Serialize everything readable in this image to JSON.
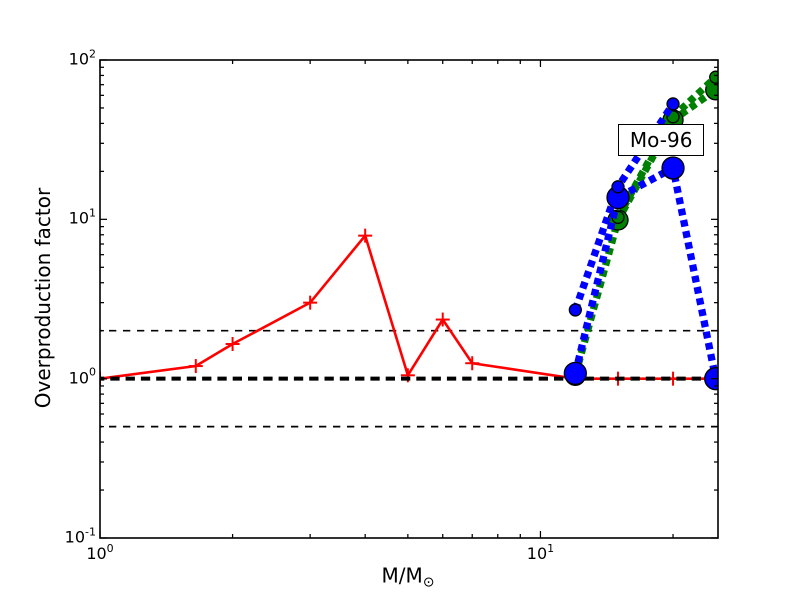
{
  "figure": {
    "background": "#ffffff",
    "axis_color": "#000000"
  },
  "chart_data": {
    "type": "line",
    "title": "",
    "x_scale": "log",
    "y_scale": "log",
    "xlim": [
      1,
      25.3
    ],
    "ylim": [
      0.1,
      100
    ],
    "xlabel_main": "M/M",
    "xlabel_sub": "⊙",
    "ylabel": "Overproduction factor",
    "grid": false,
    "legend": "none",
    "x_tick_labels": [
      {
        "value": 1,
        "base": "10",
        "exp": "0"
      },
      {
        "value": 10,
        "base": "10",
        "exp": "1"
      }
    ],
    "y_tick_labels": [
      {
        "value": 0.1,
        "base": "10",
        "exp": "-1"
      },
      {
        "value": 1,
        "base": "10",
        "exp": "0"
      },
      {
        "value": 10,
        "base": "10",
        "exp": "1"
      },
      {
        "value": 100,
        "base": "10",
        "exp": "2"
      }
    ],
    "reference_lines": [
      {
        "y": 2,
        "color": "#000000",
        "style": "dashed-thin",
        "z": 1
      },
      {
        "y": 0.5,
        "color": "#000000",
        "style": "dashed-thin",
        "z": 1
      },
      {
        "y": 1,
        "color": "#000000",
        "style": "dashed-thick",
        "z": 3
      }
    ],
    "series": [
      {
        "name": "red-solid-plus",
        "color": "#ff0000",
        "line": "solid",
        "marker": "plus",
        "marker_size": 7,
        "z": 2,
        "x": [
          1,
          1.65,
          2,
          3,
          4,
          5,
          6,
          7,
          12,
          15,
          20,
          25
        ],
        "y": [
          1.0,
          1.2,
          1.65,
          3.0,
          7.9,
          1.05,
          2.35,
          1.25,
          1.0,
          1.0,
          1.0,
          1.0
        ]
      },
      {
        "name": "green-dotted-large-circles",
        "color": "#008000",
        "line": "dotted",
        "marker": "circle",
        "marker_size": 10,
        "z": 4,
        "x": [
          12,
          15,
          20,
          25
        ],
        "y": [
          1.05,
          9.9,
          42,
          65
        ]
      },
      {
        "name": "green-dotted-small-circles",
        "color": "#008000",
        "line": "dotted",
        "marker": "circle",
        "marker_size": 6,
        "z": 5,
        "x": [
          15,
          20,
          25
        ],
        "y": [
          10.3,
          44,
          78
        ]
      },
      {
        "name": "blue-dotted-large-circles",
        "color": "#0000ff",
        "line": "dotted",
        "marker": "circle",
        "marker_size": 11,
        "z": 6,
        "x": [
          12,
          15,
          20,
          25
        ],
        "y": [
          1.08,
          13.7,
          21,
          1.0
        ]
      },
      {
        "name": "blue-dotted-small-circles",
        "color": "#0000ff",
        "line": "dotted",
        "marker": "circle",
        "marker_size": 6,
        "z": 7,
        "x": [
          12,
          15,
          20
        ],
        "y": [
          2.7,
          16,
          53
        ]
      }
    ],
    "annotation": {
      "text": "Mo-96",
      "x": 18.8,
      "y": 31.5
    }
  }
}
